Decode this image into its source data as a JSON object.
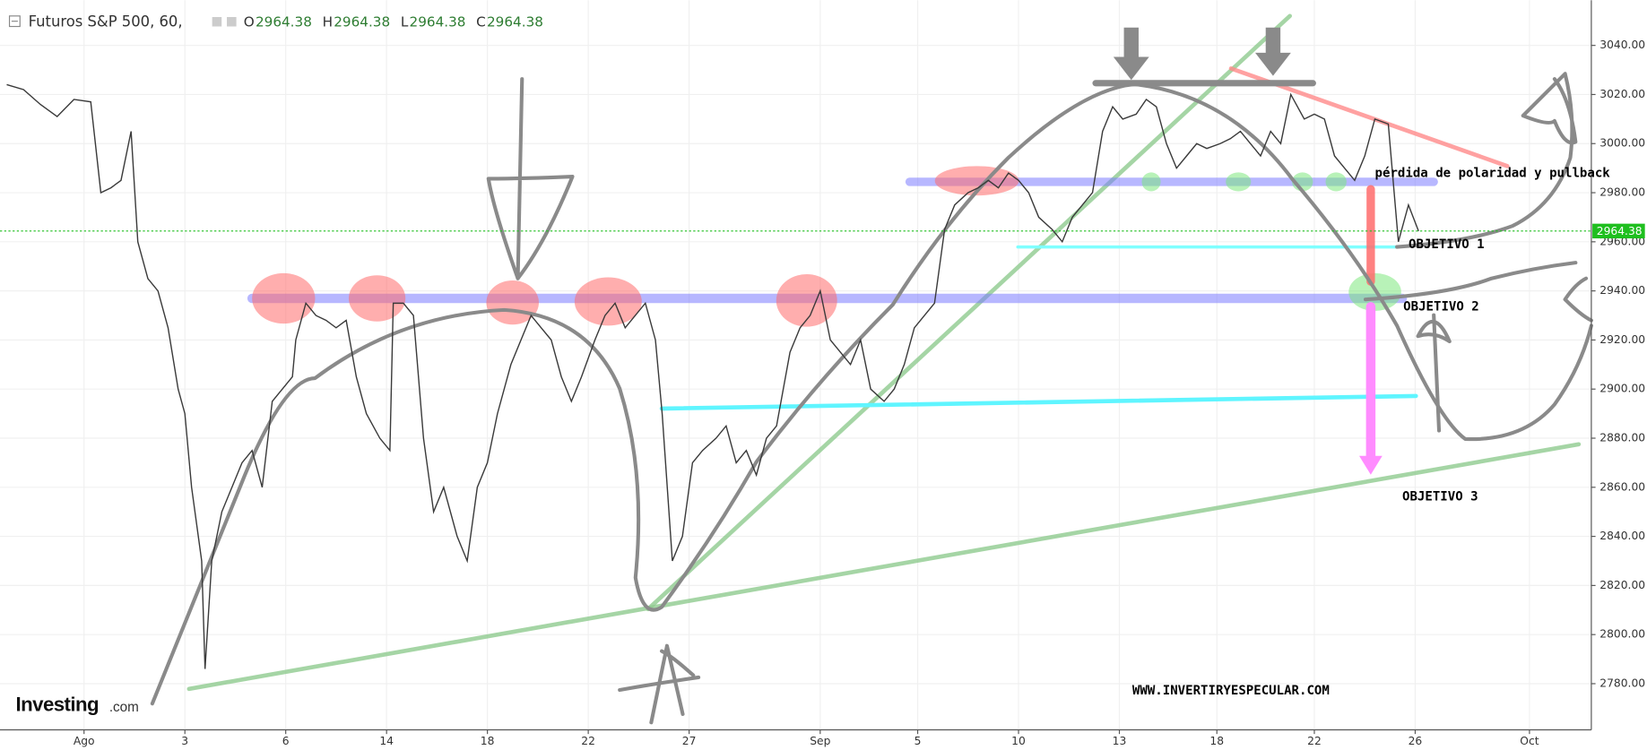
{
  "chart_data": {
    "type": "line",
    "title": "Futuros S&P 500, 60,",
    "ohlc": [
      {
        "label": "O",
        "value": "2964.38"
      },
      {
        "label": "H",
        "value": "2964.38"
      },
      {
        "label": "L",
        "value": "2964.38"
      },
      {
        "label": "C",
        "value": "2964.38"
      }
    ],
    "last_price": 2964.38,
    "last_price_color": "#1fbf1f",
    "grid": true,
    "xlim": [
      -2.5,
      44.84
    ],
    "ylim": [
      2761.2,
      3058.4
    ],
    "xticks": [
      {
        "value": 0,
        "label": "Ago"
      },
      3,
      6,
      {
        "value": 9,
        "label": "14"
      },
      {
        "value": 12,
        "label": "18"
      },
      {
        "value": 15,
        "label": "22"
      },
      {
        "value": 18,
        "label": "27"
      },
      {
        "value": 21.9,
        "label": "Sep"
      },
      {
        "value": 24.8,
        "label": "5"
      },
      {
        "value": 27.8,
        "label": "10"
      },
      {
        "value": 30.8,
        "label": "13"
      },
      {
        "value": 33.7,
        "label": "18"
      },
      {
        "value": 36.6,
        "label": "22"
      },
      {
        "value": 39.6,
        "label": "26"
      },
      {
        "value": 43,
        "label": "Oct"
      }
    ],
    "yticks": [
      {
        "value": 2780,
        "label": "2780.00"
      },
      {
        "value": 2800,
        "label": "2800.00"
      },
      {
        "value": 2820,
        "label": "2820.00"
      },
      {
        "value": 2840,
        "label": "2840.00"
      },
      {
        "value": 2860,
        "label": "2860.00"
      },
      {
        "value": 2880,
        "label": "2880.00"
      },
      {
        "value": 2900,
        "label": "2900.00"
      },
      {
        "value": 2920,
        "label": "2920.00"
      },
      {
        "value": 2940,
        "label": "2940.00"
      },
      {
        "value": 2960,
        "label": "2960.00"
      },
      {
        "value": 2980,
        "label": "2980.00"
      },
      {
        "value": 3000,
        "label": "3000.00"
      },
      {
        "value": 3020,
        "label": "3020.00"
      },
      {
        "value": 3040,
        "label": "3040.00"
      }
    ],
    "x": [
      -2.3,
      -1.8,
      -1.3,
      -0.8,
      -0.3,
      0.2,
      0.5,
      0.8,
      1.1,
      1.4,
      1.6,
      1.9,
      2.2,
      2.5,
      2.8,
      3.0,
      3.2,
      3.5,
      3.6,
      3.8,
      4.1,
      4.4,
      4.7,
      5.0,
      5.3,
      5.6,
      5.9,
      6.2,
      6.3,
      6.6,
      6.9,
      7.2,
      7.5,
      7.8,
      8.1,
      8.4,
      8.8,
      9.1,
      9.2,
      9.5,
      9.8,
      10.1,
      10.4,
      10.7,
      11.1,
      11.4,
      11.7,
      12.0,
      12.3,
      12.7,
      13.0,
      13.3,
      13.6,
      13.9,
      14.2,
      14.5,
      14.8,
      15.2,
      15.5,
      15.8,
      16.1,
      16.4,
      16.7,
      17.0,
      17.2,
      17.5,
      17.8,
      18.1,
      18.4,
      18.8,
      19.1,
      19.4,
      19.7,
      20.0,
      20.3,
      20.6,
      21.0,
      21.3,
      21.6,
      21.9,
      22.2,
      22.5,
      22.8,
      23.1,
      23.4,
      23.8,
      24.1,
      24.4,
      24.7,
      25.0,
      25.3,
      25.6,
      25.9,
      26.3,
      26.6,
      26.9,
      27.2,
      27.5,
      27.8,
      28.1,
      28.4,
      28.8,
      29.1,
      29.4,
      29.7,
      30.0,
      30.3,
      30.6,
      30.9,
      31.3,
      31.6,
      31.9,
      32.2,
      32.5,
      32.8,
      33.1,
      33.4,
      33.8,
      34.1,
      34.4,
      34.7,
      35.0,
      35.3,
      35.6,
      35.9,
      36.3,
      36.6,
      36.9,
      37.2,
      37.5,
      37.8,
      38.1,
      38.4,
      38.8,
      39.1,
      39.4,
      39.7
    ],
    "series": [
      {
        "color": "#3a3a3a",
        "values": [
          3024,
          3022,
          3016,
          3011,
          3018,
          3017,
          2980,
          2982,
          2985,
          3005,
          2960,
          2945,
          2940,
          2925,
          2900,
          2890,
          2860,
          2830,
          2786,
          2830,
          2850,
          2860,
          2870,
          2875,
          2860,
          2895,
          2900,
          2905,
          2920,
          2935,
          2930,
          2928,
          2925,
          2928,
          2905,
          2890,
          2880,
          2875,
          2935,
          2935,
          2930,
          2880,
          2850,
          2860,
          2840,
          2830,
          2860,
          2870,
          2890,
          2910,
          2920,
          2930,
          2925,
          2920,
          2905,
          2895,
          2905,
          2920,
          2930,
          2935,
          2925,
          2930,
          2935,
          2920,
          2890,
          2830,
          2840,
          2870,
          2875,
          2880,
          2885,
          2870,
          2875,
          2865,
          2880,
          2885,
          2915,
          2925,
          2930,
          2940,
          2920,
          2915,
          2910,
          2920,
          2900,
          2895,
          2900,
          2910,
          2925,
          2930,
          2935,
          2965,
          2975,
          2980,
          2982,
          2985,
          2982,
          2988,
          2985,
          2980,
          2970,
          2965,
          2960,
          2970,
          2975,
          2980,
          3005,
          3015,
          3010,
          3012,
          3018,
          3015,
          3000,
          2990,
          2995,
          3000,
          2998,
          3000,
          3002,
          3005,
          3000,
          2995,
          3005,
          3000,
          3020,
          3010,
          3012,
          3010,
          2995,
          2990,
          2985,
          2995,
          3010,
          3008,
          2960,
          2975,
          2964.38
        ]
      }
    ],
    "annotations": {
      "polarity": "pérdida de polaridad y pullback",
      "target1": "OBJETIVO 1",
      "target2": "OBJETIVO 2",
      "target3": "OBJETIVO 3",
      "website": "WWW.INVERTIRYESPECULAR.COM",
      "logo": "Investing",
      "logo_suffix": ".com"
    }
  }
}
